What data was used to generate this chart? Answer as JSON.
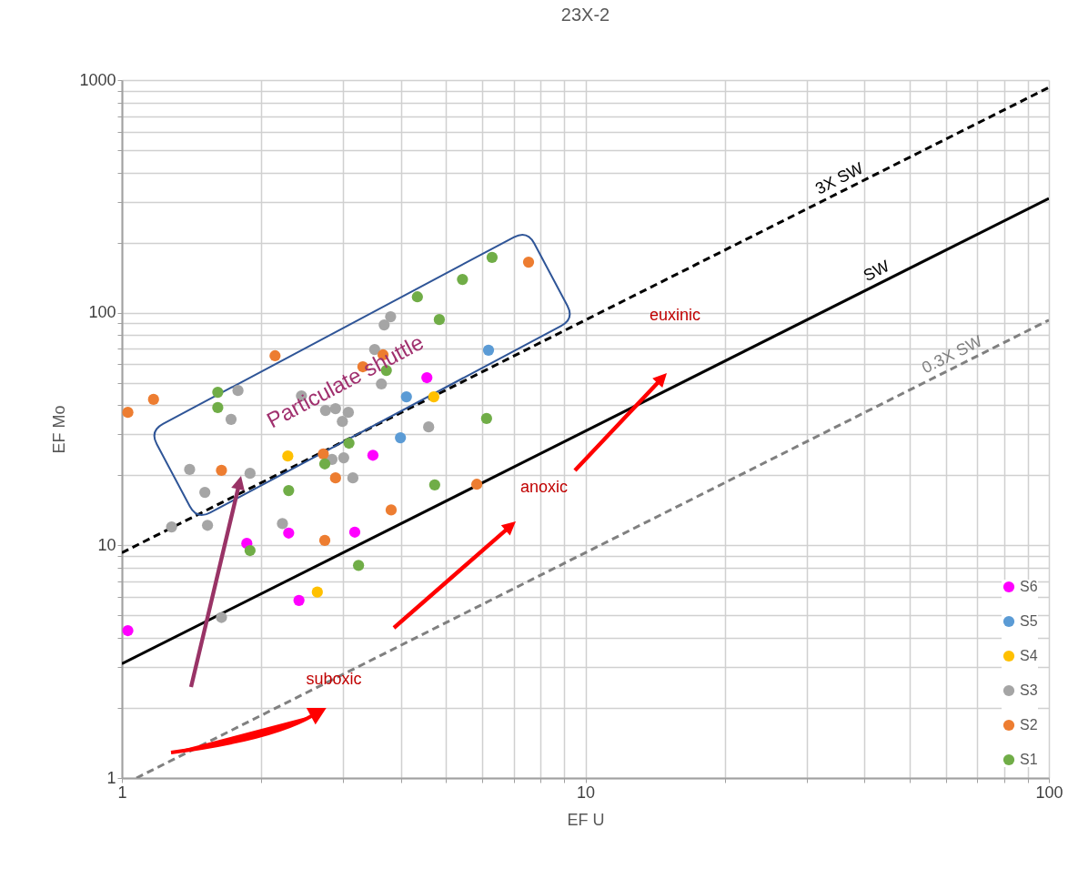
{
  "chart_data": {
    "type": "scatter",
    "title": "23X-2",
    "xlabel": "EF U",
    "ylabel": "EF Mo",
    "log": "xy",
    "grid": true,
    "legend": "bottom right",
    "marker": "circle",
    "xlim": [
      1,
      100
    ],
    "ylim": [
      1,
      1000
    ],
    "xticks": [
      1,
      {
        "value": 2,
        "label": null
      },
      {
        "value": 3,
        "label": null
      },
      {
        "value": 4,
        "label": null
      },
      {
        "value": 5,
        "label": null
      },
      {
        "value": 6,
        "label": null
      },
      {
        "value": 7,
        "label": null
      },
      {
        "value": 8,
        "label": null
      },
      {
        "value": 9,
        "label": null
      },
      10,
      {
        "value": 20,
        "label": null
      },
      {
        "value": 30,
        "label": null
      },
      {
        "value": 40,
        "label": null
      },
      {
        "value": 50,
        "label": null
      },
      {
        "value": 60,
        "label": null
      },
      {
        "value": 70,
        "label": null
      },
      {
        "value": 80,
        "label": null
      },
      {
        "value": 90,
        "label": null
      },
      100
    ],
    "yticks": [
      1,
      {
        "value": 2,
        "label": null
      },
      {
        "value": 3,
        "label": null
      },
      {
        "value": 4,
        "label": null
      },
      {
        "value": 5,
        "label": null
      },
      {
        "value": 6,
        "label": null
      },
      {
        "value": 7,
        "label": null
      },
      {
        "value": 8,
        "label": null
      },
      {
        "value": 9,
        "label": null
      },
      10,
      {
        "value": 20,
        "label": null
      },
      {
        "value": 30,
        "label": null
      },
      {
        "value": 40,
        "label": null
      },
      {
        "value": 50,
        "label": null
      },
      {
        "value": 60,
        "label": null
      },
      {
        "value": 70,
        "label": null
      },
      {
        "value": 80,
        "label": null
      },
      {
        "value": 90,
        "label": null
      },
      100,
      {
        "value": 200,
        "label": null
      },
      {
        "value": 300,
        "label": null
      },
      {
        "value": 400,
        "label": null
      },
      {
        "value": 500,
        "label": null
      },
      {
        "value": 600,
        "label": null
      },
      {
        "value": 700,
        "label": null
      },
      {
        "value": 800,
        "label": null
      },
      {
        "value": 900,
        "label": null
      },
      1000
    ],
    "series": [
      {
        "name": "S6",
        "color": "#ff00ff",
        "x": [
          1.03,
          1.86,
          2.29,
          2.41,
          3.18,
          3.48,
          4.55
        ],
        "values": [
          4.3,
          10.2,
          11.3,
          5.8,
          11.4,
          24.4,
          52.6
        ]
      },
      {
        "name": "S5",
        "color": "#5b9bd5",
        "x": [
          3.99,
          4.11,
          6.18
        ],
        "values": [
          29,
          43.5,
          69
        ]
      },
      {
        "name": "S4",
        "color": "#ffc000",
        "x": [
          2.28,
          2.64,
          4.71
        ],
        "values": [
          24.2,
          6.3,
          43.5
        ]
      },
      {
        "name": "S3",
        "color": "#a5a5a5",
        "x": [
          1.78,
          1.72,
          1.4,
          1.51,
          1.89,
          2.44,
          2.75,
          2.89,
          3.08,
          2.99,
          3.51,
          3.68,
          3.8,
          3.63,
          2.84,
          3.01,
          3.15,
          4.59,
          1.28,
          1.53,
          2.22,
          1.64
        ],
        "values": [
          46.3,
          34.8,
          21.2,
          16.9,
          20.4,
          43.9,
          38,
          38.7,
          37.3,
          34.1,
          69.5,
          88.6,
          96.1,
          49.4,
          23.4,
          23.8,
          19.5,
          32.3,
          12,
          12.2,
          12.4,
          4.9
        ]
      },
      {
        "name": "S2",
        "color": "#ed7d31",
        "x": [
          1.03,
          1.17,
          1.64,
          2.14,
          3.31,
          3.66,
          2.72,
          2.89,
          3.81,
          5.83,
          2.74,
          7.54
        ],
        "values": [
          37.3,
          42.4,
          21,
          65.3,
          58.6,
          65.9,
          24.7,
          19.5,
          14.2,
          18.3,
          10.5,
          165
        ]
      },
      {
        "name": "S1",
        "color": "#70ad47",
        "x": [
          1.61,
          1.61,
          2.29,
          2.74,
          3.09,
          3.72,
          4.34,
          4.84,
          5.43,
          6.29,
          6.12,
          4.73,
          1.89,
          3.24
        ],
        "values": [
          45.5,
          39.1,
          17.2,
          22.4,
          27.5,
          56.5,
          117,
          93.5,
          139,
          173,
          35.1,
          18.2,
          9.5,
          8.2
        ]
      },
      {
        "name": "3X SW",
        "type": "line",
        "color": "#000000",
        "line_style": "dashed",
        "marker": "none",
        "x": [
          1,
          100
        ],
        "values": [
          9.3,
          930
        ]
      },
      {
        "name": "SW",
        "type": "line",
        "color": "#000000",
        "line_style": "solid",
        "marker": "none",
        "x": [
          1,
          100
        ],
        "values": [
          3.1,
          310
        ]
      },
      {
        "name": "0.3X SW",
        "type": "line",
        "color": "#808080",
        "line_style": "dashed",
        "marker": "none",
        "x": [
          1.075,
          100
        ],
        "values": [
          1,
          93
        ]
      }
    ],
    "annotations": [
      "Particulate shuttle",
      "euxinic",
      "anoxic",
      "suboxic"
    ]
  }
}
